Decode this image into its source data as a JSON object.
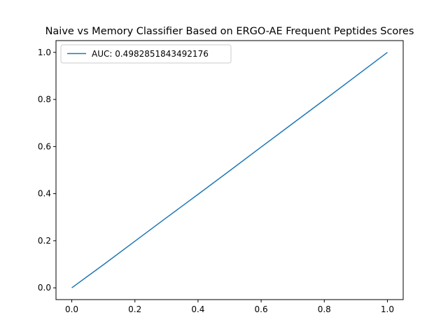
{
  "chart_data": {
    "type": "line",
    "title": "Naive vs Memory Classifier Based on ERGO-AE Frequent Peptides Scores",
    "xlabel": "",
    "ylabel": "",
    "xlim": [
      -0.05,
      1.05
    ],
    "ylim": [
      -0.05,
      1.05
    ],
    "xticks": [
      "0.0",
      "0.2",
      "0.4",
      "0.6",
      "0.8",
      "1.0"
    ],
    "yticks": [
      "0.0",
      "0.2",
      "0.4",
      "0.6",
      "0.8",
      "1.0"
    ],
    "grid": false,
    "legend_position": "upper left",
    "series": [
      {
        "name": "AUC: 0.4982851843492176",
        "color": "#1f77b4",
        "x": [
          0.0,
          0.1,
          0.2,
          0.3,
          0.4,
          0.5,
          0.6,
          0.7,
          0.8,
          0.9,
          1.0
        ],
        "y": [
          0.0,
          0.098,
          0.198,
          0.298,
          0.397,
          0.497,
          0.598,
          0.698,
          0.798,
          0.899,
          1.0
        ]
      }
    ]
  }
}
